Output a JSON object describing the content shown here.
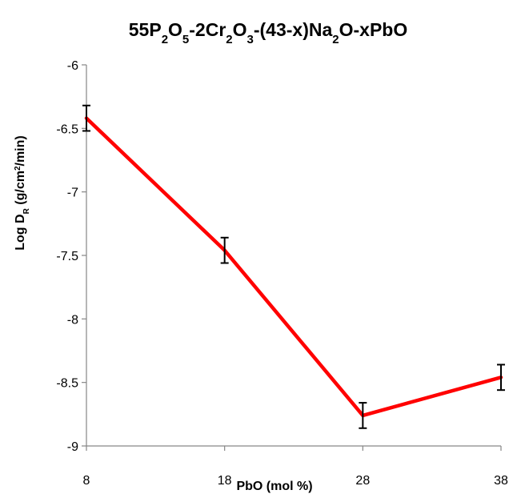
{
  "chart_data": {
    "type": "line",
    "title": {
      "parts": [
        {
          "t": "55P"
        },
        {
          "t": "2",
          "sub": true
        },
        {
          "t": "O"
        },
        {
          "t": "5",
          "sub": true
        },
        {
          "t": "-2Cr"
        },
        {
          "t": "2",
          "sub": true
        },
        {
          "t": "O"
        },
        {
          "t": "3",
          "sub": true
        },
        {
          "t": "-(43-x)Na"
        },
        {
          "t": "2",
          "sub": true
        },
        {
          "t": "O-xPbO"
        }
      ]
    },
    "xlabel": "PbO (mol %)",
    "ylabel": {
      "parts": [
        {
          "t": "Log D"
        },
        {
          "t": "R",
          "sub": true
        },
        {
          "t": " (g/cm"
        },
        {
          "t": "2",
          "sup": true
        },
        {
          "t": "/min)"
        }
      ]
    },
    "x": [
      8,
      18,
      28,
      38
    ],
    "xticks": [
      "8",
      "18",
      "28",
      "38"
    ],
    "series": [
      {
        "values": [
          -6.42,
          -7.46,
          -8.76,
          -8.46
        ],
        "error": [
          0.1,
          0.1,
          0.1,
          0.1
        ],
        "color": "#ff0000"
      }
    ],
    "ylim": [
      -9,
      -6
    ],
    "yticks": [
      "-6",
      "-6.5",
      "-7",
      "-7.5",
      "-8",
      "-8.5",
      "-9"
    ],
    "ytick_values": [
      -6,
      -6.5,
      -7,
      -7.5,
      -8,
      -8.5,
      -9
    ],
    "xlim": [
      8,
      38
    ],
    "grid": false,
    "legend": "none"
  }
}
